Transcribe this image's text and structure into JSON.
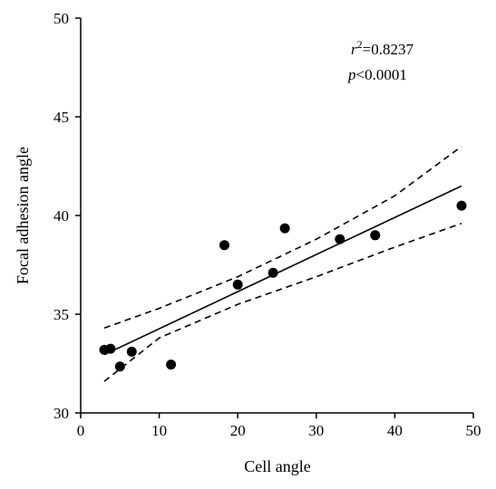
{
  "chart_data": {
    "type": "scatter",
    "xlabel": "Cell angle",
    "ylabel": "Focal adhesion angle",
    "xlim": [
      0,
      50
    ],
    "ylim": [
      30,
      50
    ],
    "x_ticks": [
      "0",
      "10",
      "20",
      "30",
      "40",
      "50"
    ],
    "y_ticks": [
      "30",
      "35",
      "40",
      "45",
      "50"
    ],
    "grid": false,
    "points": [
      {
        "x": 3.0,
        "y": 33.2
      },
      {
        "x": 3.8,
        "y": 33.25
      },
      {
        "x": 5.0,
        "y": 32.35
      },
      {
        "x": 6.5,
        "y": 33.1
      },
      {
        "x": 11.5,
        "y": 32.45
      },
      {
        "x": 18.3,
        "y": 38.5
      },
      {
        "x": 20.0,
        "y": 36.5
      },
      {
        "x": 24.5,
        "y": 37.1
      },
      {
        "x": 26.0,
        "y": 39.35
      },
      {
        "x": 33.0,
        "y": 38.8
      },
      {
        "x": 37.5,
        "y": 39.0
      },
      {
        "x": 48.5,
        "y": 40.5
      }
    ],
    "fit_line": {
      "x": [
        3.0,
        48.5
      ],
      "y": [
        32.95,
        41.5
      ]
    },
    "confidence_upper": {
      "x": [
        3.0,
        10,
        20,
        30,
        40,
        48.5
      ],
      "y": [
        34.3,
        35.3,
        36.9,
        38.8,
        41.0,
        43.5
      ]
    },
    "confidence_lower": {
      "x": [
        3.0,
        10,
        20,
        30,
        40,
        48.5
      ],
      "y": [
        31.6,
        33.8,
        35.5,
        36.9,
        38.4,
        39.6
      ]
    },
    "annotations": {
      "r_symbol": "r",
      "r_superscript": "2",
      "r_value": "=0.8237",
      "p_symbol": "p",
      "p_value": "<0.0001"
    }
  }
}
